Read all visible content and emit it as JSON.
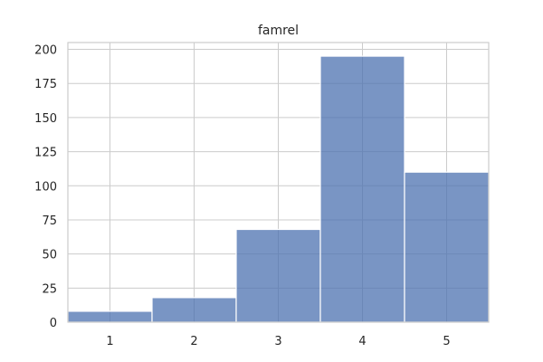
{
  "chart_data": {
    "type": "bar",
    "title": "famrel",
    "xlabel": "",
    "ylabel": "",
    "categories": [
      "1",
      "2",
      "3",
      "4",
      "5"
    ],
    "values": [
      8,
      18,
      68,
      195,
      110
    ],
    "ylim": [
      0,
      205
    ],
    "xlim": [
      0.5,
      5.5
    ],
    "yticks": [
      0,
      25,
      50,
      75,
      100,
      125,
      150,
      175,
      200
    ],
    "grid": true,
    "legend": "none",
    "colors": {
      "bar": "#4c72b0",
      "bar_opacity": 0.75,
      "bar_edge": "#ffffff",
      "grid": "#cccccc",
      "axes_edge": "#cccccc",
      "text": "#262626",
      "background": "#ffffff"
    }
  }
}
